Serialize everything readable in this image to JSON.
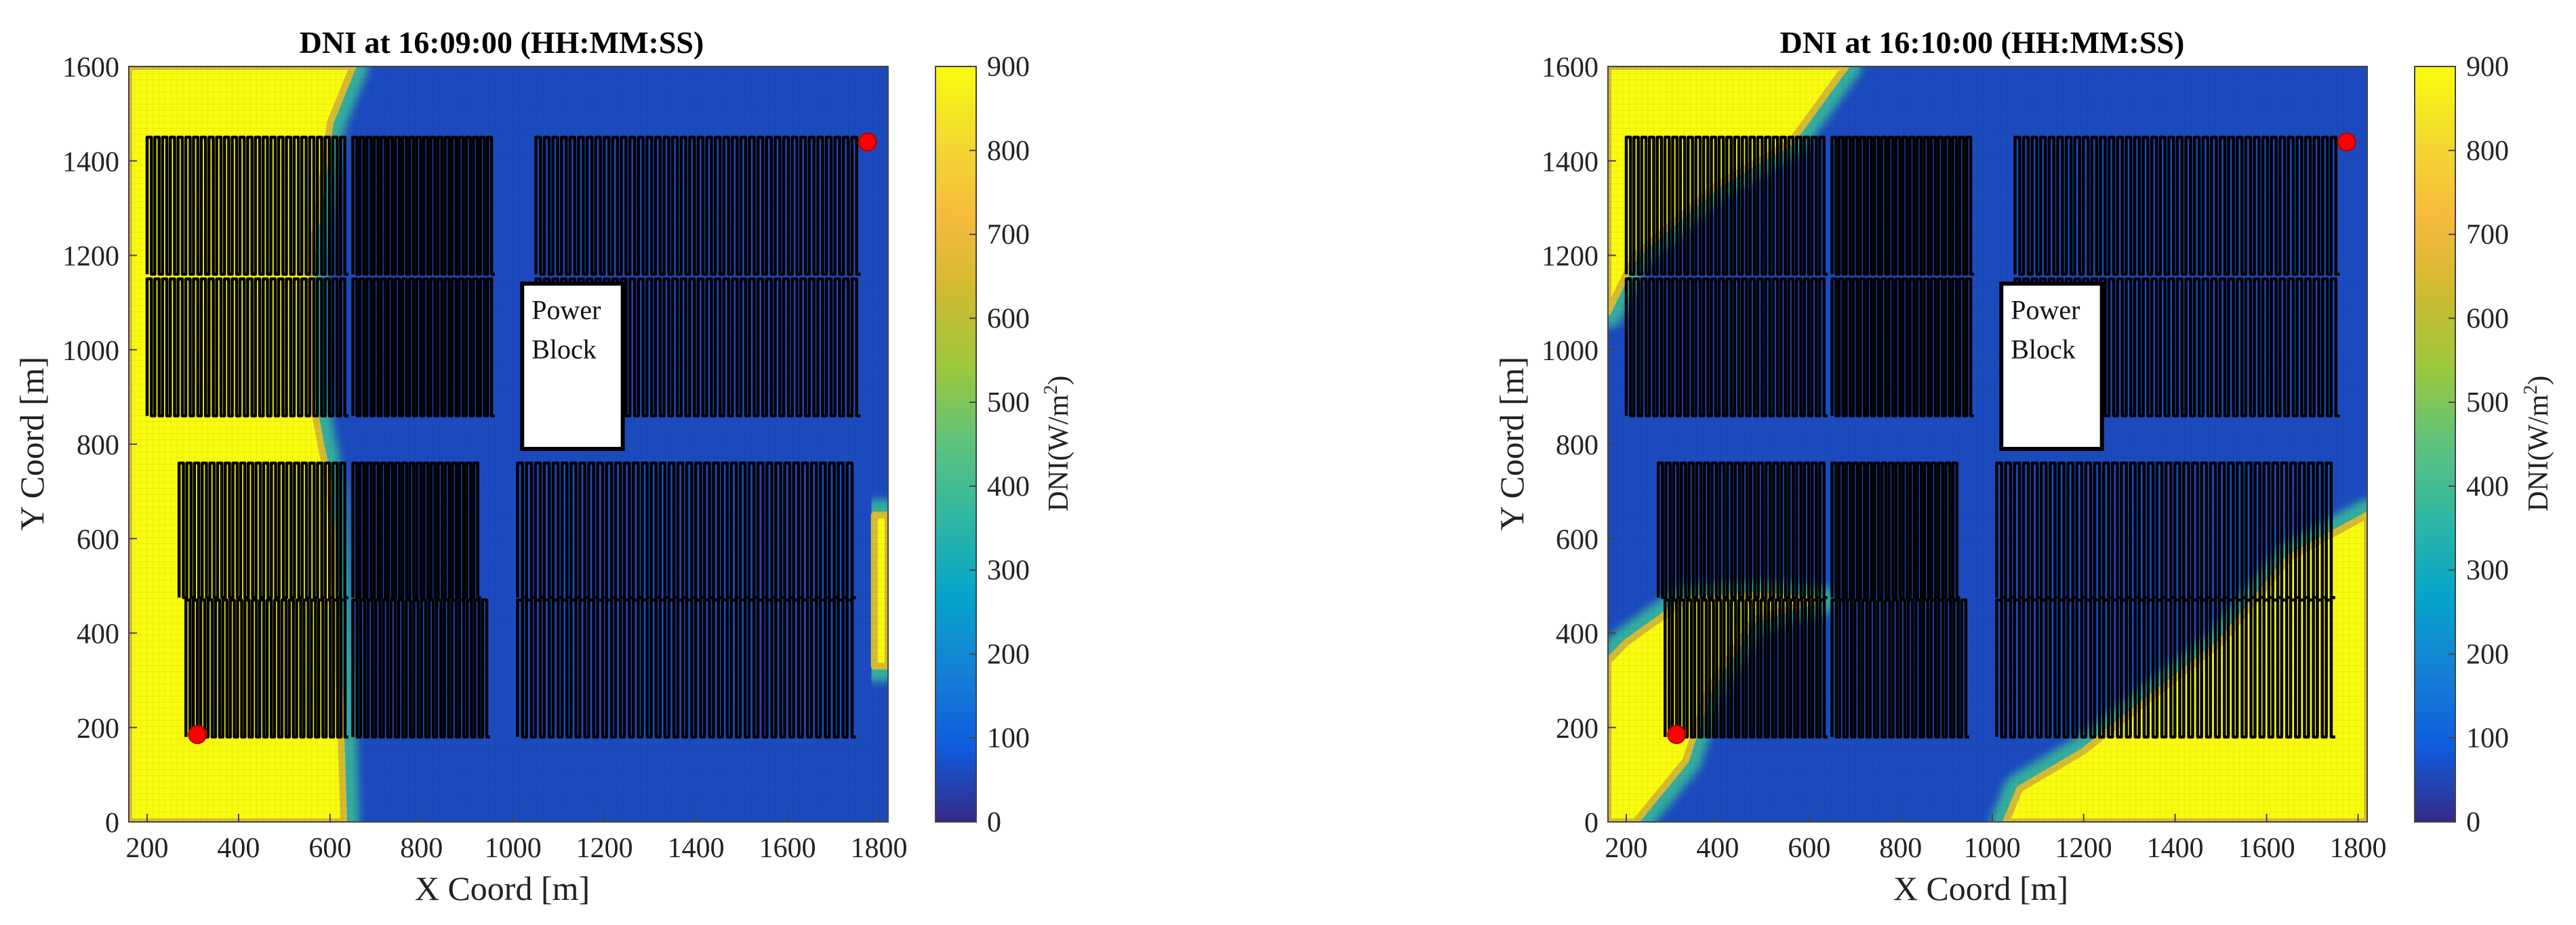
{
  "figure": {
    "panels": [
      {
        "title": "DNI at 16:09:00 (HH:MM:SS)"
      },
      {
        "title": "DNI at 16:10:00 (HH:MM:SS)"
      }
    ],
    "power_block_line1": "Power",
    "power_block_line2": "Block",
    "colorbar_label_main": "DNI(W/m",
    "colorbar_label_sup": "2",
    "colorbar_label_end": ")"
  },
  "chart_data": [
    {
      "type": "heatmap",
      "title": "DNI at 16:09:00 (HH:MM:SS)",
      "xlabel": "X Coord [m]",
      "ylabel": "Y Coord [m]",
      "xlim": [
        160,
        1820
      ],
      "ylim": [
        0,
        1600
      ],
      "xticks": [
        200,
        400,
        600,
        800,
        1000,
        1200,
        1400,
        1600,
        1800
      ],
      "yticks": [
        0,
        200,
        400,
        600,
        800,
        1000,
        1200,
        1400,
        1600
      ],
      "colorbar": {
        "label": "DNI(W/m2)",
        "range": [
          0,
          900
        ],
        "ticks": [
          0,
          100,
          200,
          300,
          400,
          500,
          600,
          700,
          800,
          900
        ]
      },
      "high_dni_regions": [
        {
          "value": 900,
          "polygon_xy": [
            [
              160,
              0
            ],
            [
              630,
              0
            ],
            [
              620,
              300
            ],
            [
              600,
              700
            ],
            [
              560,
              900
            ],
            [
              560,
              1200
            ],
            [
              600,
              1480
            ],
            [
              650,
              1600
            ],
            [
              160,
              1600
            ]
          ]
        },
        {
          "value": 900,
          "polygon_xy": [
            [
              1790,
              330
            ],
            [
              1820,
              330
            ],
            [
              1820,
              650
            ],
            [
              1790,
              650
            ]
          ]
        }
      ],
      "background_dni": 60,
      "markers": [
        {
          "x": 310,
          "y": 185
        },
        {
          "x": 1775,
          "y": 1440
        }
      ],
      "power_block": {
        "x": [
          1020,
          1240
        ],
        "y": [
          790,
          1140
        ]
      }
    },
    {
      "type": "heatmap",
      "title": "DNI at 16:10:00 (HH:MM:SS)",
      "xlabel": "X Coord [m]",
      "ylabel": "Y Coord [m]",
      "xlim": [
        160,
        1820
      ],
      "ylim": [
        0,
        1600
      ],
      "xticks": [
        200,
        400,
        600,
        800,
        1000,
        1200,
        1400,
        1600,
        1800
      ],
      "yticks": [
        0,
        200,
        400,
        600,
        800,
        1000,
        1200,
        1400,
        1600
      ],
      "colorbar": {
        "label": "DNI(W/m2)",
        "range": [
          0,
          900
        ],
        "ticks": [
          0,
          100,
          200,
          300,
          400,
          500,
          600,
          700,
          800,
          900
        ]
      },
      "high_dni_regions": [
        {
          "value": 900,
          "polygon_xy": [
            [
              160,
              1600
            ],
            [
              680,
              1600
            ],
            [
              560,
              1440
            ],
            [
              400,
              1350
            ],
            [
              220,
              1200
            ],
            [
              160,
              1080
            ]
          ]
        },
        {
          "value": 900,
          "polygon_xy": [
            [
              160,
              0
            ],
            [
              220,
              0
            ],
            [
              330,
              130
            ],
            [
              380,
              280
            ],
            [
              480,
              430
            ],
            [
              620,
              470
            ],
            [
              480,
              480
            ],
            [
              330,
              470
            ],
            [
              200,
              380
            ],
            [
              160,
              340
            ]
          ]
        },
        {
          "value": 900,
          "polygon_xy": [
            [
              1030,
              0
            ],
            [
              1060,
              70
            ],
            [
              1200,
              150
            ],
            [
              1330,
              250
            ],
            [
              1500,
              380
            ],
            [
              1650,
              560
            ],
            [
              1820,
              650
            ],
            [
              1820,
              0
            ]
          ]
        }
      ],
      "background_dni": 60,
      "markers": [
        {
          "x": 310,
          "y": 185
        },
        {
          "x": 1775,
          "y": 1440
        }
      ],
      "power_block": {
        "x": [
          1020,
          1240
        ],
        "y": [
          790,
          1140
        ]
      }
    }
  ]
}
